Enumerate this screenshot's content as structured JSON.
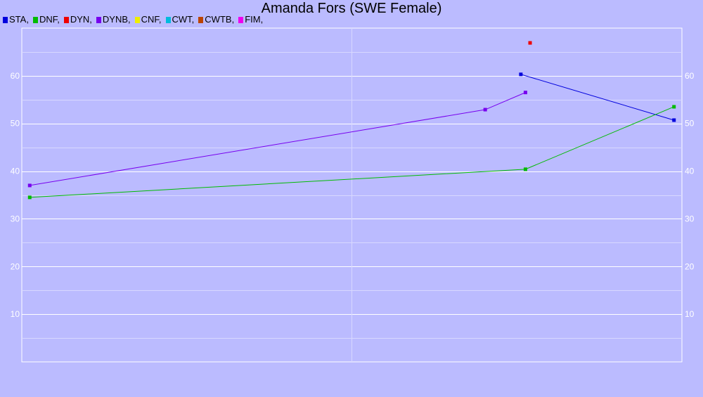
{
  "chart_data": {
    "type": "line",
    "title": "Amanda Fors (SWE Female)",
    "xlabel": "",
    "ylabel": "",
    "ylim": [
      0,
      70
    ],
    "xlim": [
      0,
      1
    ],
    "yticks": [
      10,
      20,
      30,
      40,
      50,
      60
    ],
    "grid": true,
    "legend_position": "top-left",
    "legend": [
      {
        "label": "STA,",
        "color": "#0000dd"
      },
      {
        "label": "DNF,",
        "color": "#00bb00"
      },
      {
        "label": "DYN,",
        "color": "#ee0000"
      },
      {
        "label": "DYNB,",
        "color": "#7700ee"
      },
      {
        "label": "CNF,",
        "color": "#eeee00"
      },
      {
        "label": "CWT,",
        "color": "#00bbdd"
      },
      {
        "label": "CWTB,",
        "color": "#bb4400"
      },
      {
        "label": "FIM,",
        "color": "#ee00ee"
      }
    ],
    "series": [
      {
        "name": "STA",
        "color": "#0000dd",
        "x": [
          0.756,
          0.988
        ],
        "y": [
          60.3,
          50.7
        ]
      },
      {
        "name": "DNF",
        "color": "#00bb00",
        "x": [
          0.012,
          0.763,
          0.988
        ],
        "y": [
          34.5,
          40.4,
          53.5
        ]
      },
      {
        "name": "DYN",
        "color": "#ee0000",
        "x": [
          0.77
        ],
        "y": [
          66.9
        ]
      },
      {
        "name": "DYNB",
        "color": "#7700ee",
        "x": [
          0.012,
          0.702,
          0.763
        ],
        "y": [
          37.0,
          52.9,
          56.5
        ]
      }
    ]
  }
}
